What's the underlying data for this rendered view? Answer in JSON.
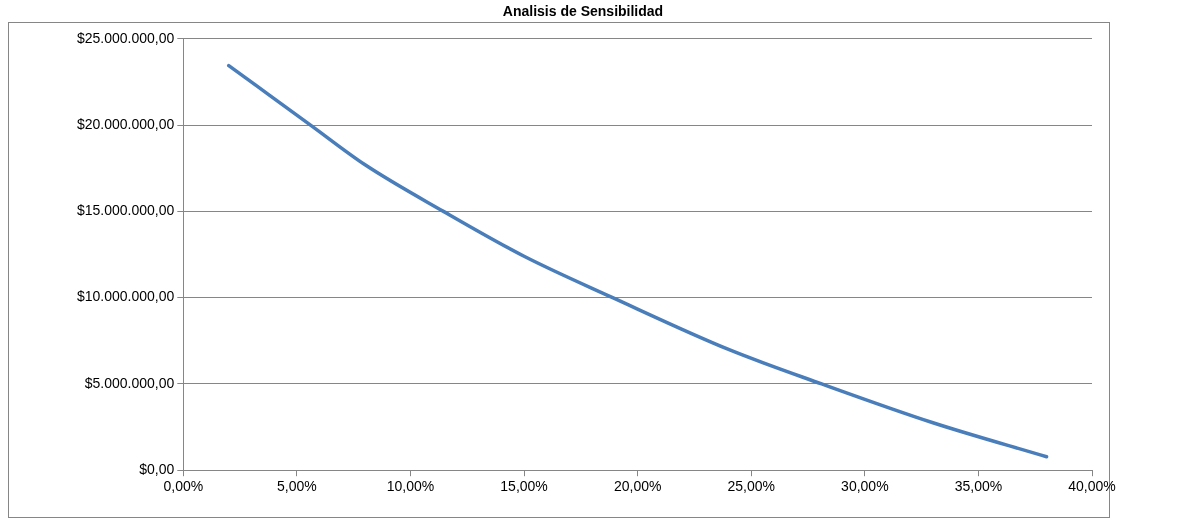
{
  "chart_data": {
    "type": "line",
    "title": "Analisis de Sensibilidad",
    "x": [
      2,
      5.6,
      8,
      11.45,
      15,
      18.9,
      24,
      28.1,
      33,
      38
    ],
    "series": [
      {
        "color": "#4a7ebb",
        "values": [
          23450000,
          20000000,
          17700000,
          15000000,
          12400000,
          10000000,
          7000000,
          5000000,
          2750000,
          780000
        ]
      }
    ],
    "xlim": [
      0,
      40
    ],
    "xticks": [
      {
        "value": 0,
        "label": "0,00%"
      },
      {
        "value": 5,
        "label": "5,00%"
      },
      {
        "value": 10,
        "label": "10,00%"
      },
      {
        "value": 15,
        "label": "15,00%"
      },
      {
        "value": 20,
        "label": "20,00%"
      },
      {
        "value": 25,
        "label": "25,00%"
      },
      {
        "value": 30,
        "label": "30,00%"
      },
      {
        "value": 35,
        "label": "35,00%"
      },
      {
        "value": 40,
        "label": "40,00%"
      }
    ],
    "ylim": [
      0,
      25000000
    ],
    "yticks": [
      {
        "value": 0,
        "label": "$0,00"
      },
      {
        "value": 5000000,
        "label": "$5.000.000,00"
      },
      {
        "value": 10000000,
        "label": "$10.000.000,00"
      },
      {
        "value": 15000000,
        "label": "$15.000.000,00"
      },
      {
        "value": 20000000,
        "label": "$20.000.000,00"
      },
      {
        "value": 25000000,
        "label": "$25.000.000,00"
      }
    ],
    "grid": "y",
    "legend": false,
    "marker": "none",
    "line_style": "solid"
  }
}
